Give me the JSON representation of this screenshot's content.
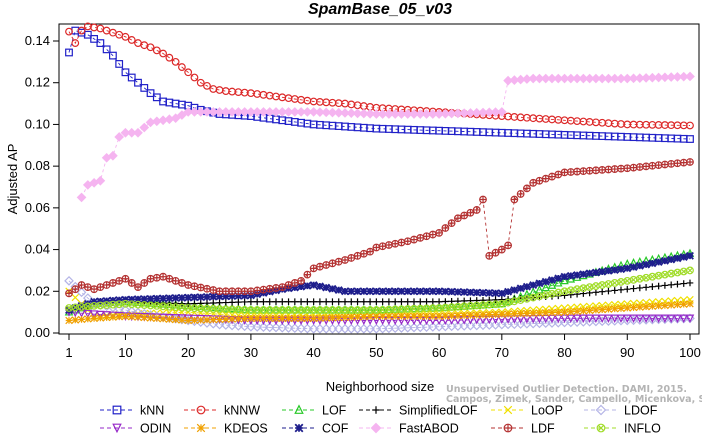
{
  "chart_data": {
    "type": "line",
    "title": "SpamBase_05_v03",
    "xlabel": "Neighborhood size",
    "ylabel": "Adjusted AP",
    "xlim": [
      1,
      100
    ],
    "ylim": [
      0,
      0.145
    ],
    "x_ticks": [
      1,
      10,
      20,
      30,
      40,
      50,
      60,
      70,
      80,
      90,
      100
    ],
    "x_tick_labels": [
      "1",
      "10",
      "20",
      "30",
      "40",
      "50",
      "60",
      "70",
      "80",
      "90",
      "100"
    ],
    "y_ticks": [
      0.0,
      0.02,
      0.04,
      0.06,
      0.08,
      0.1,
      0.12,
      0.14
    ],
    "y_tick_labels": [
      "0.00",
      "0.02",
      "0.04",
      "0.06",
      "0.08",
      "0.10",
      "0.12",
      "0.14"
    ],
    "grid": false,
    "legend_placement": "bottom",
    "credit": "Campos, Zimek, Sander, Campello, Micenkova, Schubert, Assent, Houle",
    "credit_line1": "Unsupervised Outlier Detection. DAMI, 2015.",
    "series": [
      {
        "name": "kNN",
        "color": "#2020c8",
        "marker": "square",
        "points": [
          [
            1,
            0.1345
          ],
          [
            2,
            0.145
          ],
          [
            3,
            0.144
          ],
          [
            4,
            0.143
          ],
          [
            5,
            0.141
          ],
          [
            6,
            0.139
          ],
          [
            7,
            0.136
          ],
          [
            8,
            0.133
          ],
          [
            9,
            0.129
          ],
          [
            10,
            0.125
          ],
          [
            12,
            0.12
          ],
          [
            14,
            0.115
          ],
          [
            16,
            0.111
          ],
          [
            18,
            0.11
          ],
          [
            20,
            0.109
          ],
          [
            22,
            0.107
          ],
          [
            25,
            0.105
          ],
          [
            30,
            0.104
          ],
          [
            35,
            0.102
          ],
          [
            40,
            0.1
          ],
          [
            45,
            0.099
          ],
          [
            50,
            0.098
          ],
          [
            60,
            0.097
          ],
          [
            70,
            0.096
          ],
          [
            80,
            0.095
          ],
          [
            90,
            0.094
          ],
          [
            100,
            0.093
          ]
        ]
      },
      {
        "name": "kNNW",
        "color": "#dc2828",
        "marker": "circle",
        "points": [
          [
            1,
            0.1445
          ],
          [
            2,
            0.139
          ],
          [
            3,
            0.145
          ],
          [
            4,
            0.147
          ],
          [
            5,
            0.1465
          ],
          [
            6,
            0.146
          ],
          [
            8,
            0.144
          ],
          [
            10,
            0.142
          ],
          [
            12,
            0.139
          ],
          [
            14,
            0.137
          ],
          [
            16,
            0.134
          ],
          [
            18,
            0.13
          ],
          [
            20,
            0.125
          ],
          [
            22,
            0.12
          ],
          [
            24,
            0.117
          ],
          [
            26,
            0.116
          ],
          [
            30,
            0.115
          ],
          [
            35,
            0.113
          ],
          [
            40,
            0.111
          ],
          [
            45,
            0.11
          ],
          [
            50,
            0.108
          ],
          [
            60,
            0.106
          ],
          [
            70,
            0.104
          ],
          [
            80,
            0.102
          ],
          [
            90,
            0.1
          ],
          [
            100,
            0.0995
          ]
        ]
      },
      {
        "name": "LOF",
        "color": "#28c828",
        "marker": "triangle-up",
        "points": [
          [
            1,
            0.01
          ],
          [
            5,
            0.014
          ],
          [
            10,
            0.015
          ],
          [
            20,
            0.013
          ],
          [
            30,
            0.011
          ],
          [
            40,
            0.011
          ],
          [
            50,
            0.011
          ],
          [
            60,
            0.012
          ],
          [
            70,
            0.014
          ],
          [
            80,
            0.025
          ],
          [
            90,
            0.033
          ],
          [
            100,
            0.038
          ]
        ]
      },
      {
        "name": "SimplifiedLOF",
        "color": "#000000",
        "marker": "plus",
        "points": [
          [
            1,
            0.011
          ],
          [
            5,
            0.014
          ],
          [
            10,
            0.015
          ],
          [
            20,
            0.014
          ],
          [
            30,
            0.015
          ],
          [
            40,
            0.015
          ],
          [
            50,
            0.015
          ],
          [
            60,
            0.015
          ],
          [
            70,
            0.016
          ],
          [
            80,
            0.018
          ],
          [
            90,
            0.021
          ],
          [
            100,
            0.024
          ]
        ]
      },
      {
        "name": "LoOP",
        "color": "#f0e000",
        "marker": "x",
        "points": [
          [
            1,
            0.02
          ],
          [
            5,
            0.008
          ],
          [
            10,
            0.009
          ],
          [
            20,
            0.01
          ],
          [
            30,
            0.008
          ],
          [
            40,
            0.009
          ],
          [
            50,
            0.009
          ],
          [
            60,
            0.009
          ],
          [
            70,
            0.01
          ],
          [
            80,
            0.012
          ],
          [
            90,
            0.014
          ],
          [
            100,
            0.016
          ]
        ]
      },
      {
        "name": "LDOF",
        "color": "#b4b4e6",
        "marker": "diamond",
        "points": [
          [
            1,
            0.025
          ],
          [
            5,
            0.014
          ],
          [
            10,
            0.011
          ],
          [
            15,
            0.008
          ],
          [
            20,
            0.006
          ],
          [
            25,
            0.004
          ],
          [
            30,
            0.003
          ],
          [
            40,
            0.002
          ],
          [
            50,
            0.002
          ],
          [
            60,
            0.003
          ],
          [
            70,
            0.004
          ],
          [
            80,
            0.005
          ],
          [
            90,
            0.006
          ],
          [
            100,
            0.007
          ]
        ]
      },
      {
        "name": "ODIN",
        "color": "#9628c8",
        "marker": "triangle-down",
        "points": [
          [
            1,
            0.01
          ],
          [
            5,
            0.009
          ],
          [
            10,
            0.008
          ],
          [
            20,
            0.007
          ],
          [
            30,
            0.006
          ],
          [
            40,
            0.006
          ],
          [
            50,
            0.006
          ],
          [
            60,
            0.006
          ],
          [
            70,
            0.0065
          ],
          [
            80,
            0.007
          ],
          [
            90,
            0.007
          ],
          [
            100,
            0.007
          ]
        ]
      },
      {
        "name": "KDEOS",
        "color": "#f0a000",
        "marker": "asterisk",
        "points": [
          [
            1,
            0.006
          ],
          [
            5,
            0.007
          ],
          [
            10,
            0.008
          ],
          [
            20,
            0.006
          ],
          [
            30,
            0.007
          ],
          [
            40,
            0.007
          ],
          [
            50,
            0.008
          ],
          [
            60,
            0.008
          ],
          [
            70,
            0.009
          ],
          [
            80,
            0.01
          ],
          [
            90,
            0.012
          ],
          [
            100,
            0.014
          ]
        ]
      },
      {
        "name": "COF",
        "color": "#1e1e8c",
        "marker": "star",
        "points": [
          [
            1,
            0.011
          ],
          [
            5,
            0.015
          ],
          [
            10,
            0.016
          ],
          [
            20,
            0.017
          ],
          [
            30,
            0.018
          ],
          [
            35,
            0.021
          ],
          [
            40,
            0.023
          ],
          [
            45,
            0.02
          ],
          [
            50,
            0.02
          ],
          [
            60,
            0.02
          ],
          [
            70,
            0.019
          ],
          [
            75,
            0.023
          ],
          [
            80,
            0.027
          ],
          [
            90,
            0.031
          ],
          [
            100,
            0.037
          ]
        ]
      },
      {
        "name": "FastABOD",
        "color": "#f5b4f0",
        "marker": "diamond-filled",
        "points": [
          [
            3,
            0.065
          ],
          [
            4,
            0.071
          ],
          [
            5,
            0.072
          ],
          [
            6,
            0.073
          ],
          [
            7,
            0.084
          ],
          [
            8,
            0.085
          ],
          [
            9,
            0.094
          ],
          [
            10,
            0.096
          ],
          [
            12,
            0.096
          ],
          [
            14,
            0.101
          ],
          [
            16,
            0.102
          ],
          [
            18,
            0.103
          ],
          [
            20,
            0.106
          ],
          [
            30,
            0.106
          ],
          [
            40,
            0.106
          ],
          [
            50,
            0.105
          ],
          [
            60,
            0.105
          ],
          [
            70,
            0.106
          ],
          [
            71,
            0.121
          ],
          [
            75,
            0.122
          ],
          [
            80,
            0.122
          ],
          [
            90,
            0.122
          ],
          [
            100,
            0.123
          ]
        ]
      },
      {
        "name": "LDF",
        "color": "#b43232",
        "marker": "circle-plus",
        "points": [
          [
            1,
            0.019
          ],
          [
            3,
            0.023
          ],
          [
            5,
            0.021
          ],
          [
            8,
            0.024
          ],
          [
            10,
            0.026
          ],
          [
            12,
            0.022
          ],
          [
            14,
            0.026
          ],
          [
            16,
            0.027
          ],
          [
            18,
            0.025
          ],
          [
            20,
            0.023
          ],
          [
            25,
            0.02
          ],
          [
            30,
            0.02
          ],
          [
            35,
            0.022
          ],
          [
            38,
            0.025
          ],
          [
            40,
            0.031
          ],
          [
            45,
            0.035
          ],
          [
            49,
            0.039
          ],
          [
            50,
            0.041
          ],
          [
            55,
            0.044
          ],
          [
            60,
            0.048
          ],
          [
            63,
            0.055
          ],
          [
            66,
            0.059
          ],
          [
            67,
            0.064
          ],
          [
            68,
            0.037
          ],
          [
            70,
            0.04
          ],
          [
            71,
            0.042
          ],
          [
            72,
            0.064
          ],
          [
            75,
            0.072
          ],
          [
            80,
            0.077
          ],
          [
            90,
            0.079
          ],
          [
            100,
            0.082
          ]
        ]
      },
      {
        "name": "INFLO",
        "color": "#a0dc28",
        "marker": "circle-x",
        "points": [
          [
            1,
            0.012
          ],
          [
            5,
            0.013
          ],
          [
            10,
            0.014
          ],
          [
            20,
            0.012
          ],
          [
            30,
            0.011
          ],
          [
            40,
            0.011
          ],
          [
            50,
            0.011
          ],
          [
            60,
            0.012
          ],
          [
            70,
            0.014
          ],
          [
            80,
            0.02
          ],
          [
            90,
            0.025
          ],
          [
            100,
            0.03
          ]
        ]
      }
    ],
    "legend": [
      {
        "name": "kNN",
        "marker": "square",
        "color": "#2020c8",
        "dash": "dashed"
      },
      {
        "name": "kNNW",
        "marker": "circle",
        "color": "#dc2828",
        "dash": "dashed"
      },
      {
        "name": "LOF",
        "marker": "triangle-up",
        "color": "#28c828",
        "dash": "dashed"
      },
      {
        "name": "SimplifiedLOF",
        "marker": "plus",
        "color": "#000000",
        "dash": "dashed"
      },
      {
        "name": "LoOP",
        "marker": "x",
        "color": "#f0e000",
        "dash": "dashed"
      },
      {
        "name": "LDOF",
        "marker": "diamond",
        "color": "#b4b4e6",
        "dash": "dashed"
      },
      {
        "name": "ODIN",
        "marker": "triangle-down",
        "color": "#9628c8",
        "dash": "dashed"
      },
      {
        "name": "KDEOS",
        "marker": "asterisk",
        "color": "#f0a000",
        "dash": "dashed"
      },
      {
        "name": "COF",
        "marker": "star",
        "color": "#1e1e8c",
        "dash": "dashed"
      },
      {
        "name": "FastABOD",
        "marker": "diamond-filled",
        "color": "#f5b4f0",
        "dash": "dashed"
      },
      {
        "name": "LDF",
        "marker": "circle-plus",
        "color": "#b43232",
        "dash": "dashed"
      },
      {
        "name": "INFLO",
        "marker": "circle-x",
        "color": "#a0dc28",
        "dash": "dashed"
      }
    ]
  }
}
